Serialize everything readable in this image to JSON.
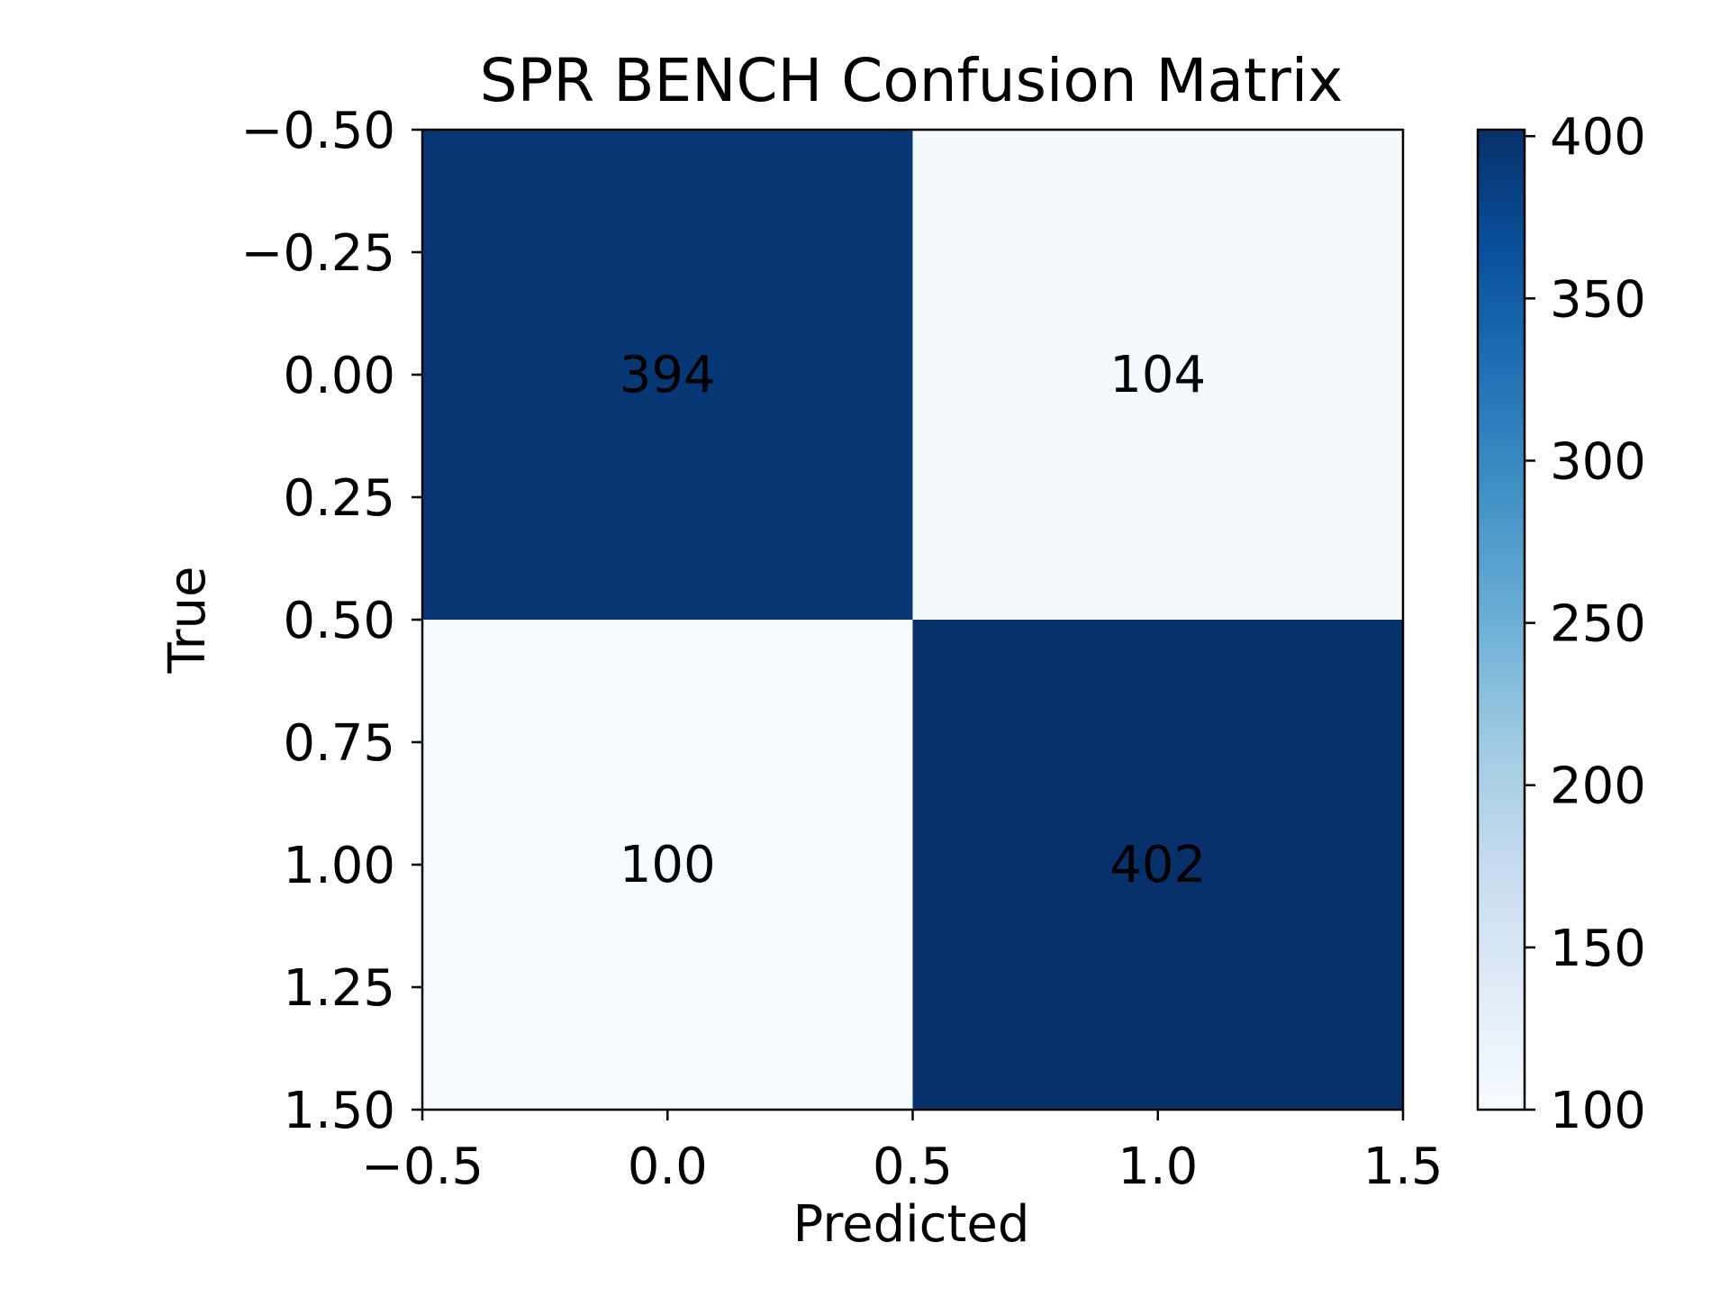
{
  "chart_data": {
    "type": "heatmap",
    "title": "SPR BENCH Confusion Matrix",
    "xlabel": "Predicted",
    "ylabel": "True",
    "xlim": [
      -0.5,
      1.5
    ],
    "ylim": [
      1.5,
      -0.5
    ],
    "x_ticks": [
      -0.5,
      0.0,
      0.5,
      1.0,
      1.5
    ],
    "x_tick_labels": [
      "−0.5",
      "0.0",
      "0.5",
      "1.0",
      "1.5"
    ],
    "y_ticks": [
      -0.5,
      -0.25,
      0.0,
      0.25,
      0.5,
      0.75,
      1.0,
      1.25,
      1.5
    ],
    "y_tick_labels": [
      "−0.50",
      "−0.25",
      "0.00",
      "0.25",
      "0.50",
      "0.75",
      "1.00",
      "1.25",
      "1.50"
    ],
    "matrix": [
      [
        394,
        104
      ],
      [
        100,
        402
      ]
    ],
    "cell_labels": [
      [
        "394",
        "104"
      ],
      [
        "100",
        "402"
      ]
    ],
    "colormap": "Blues",
    "colorbar": {
      "min": 100,
      "max": 402,
      "ticks": [
        100,
        150,
        200,
        250,
        300,
        350,
        400
      ],
      "tick_labels": [
        "100",
        "150",
        "200",
        "250",
        "300",
        "350",
        "400"
      ]
    },
    "grid": false,
    "legend": "none"
  }
}
